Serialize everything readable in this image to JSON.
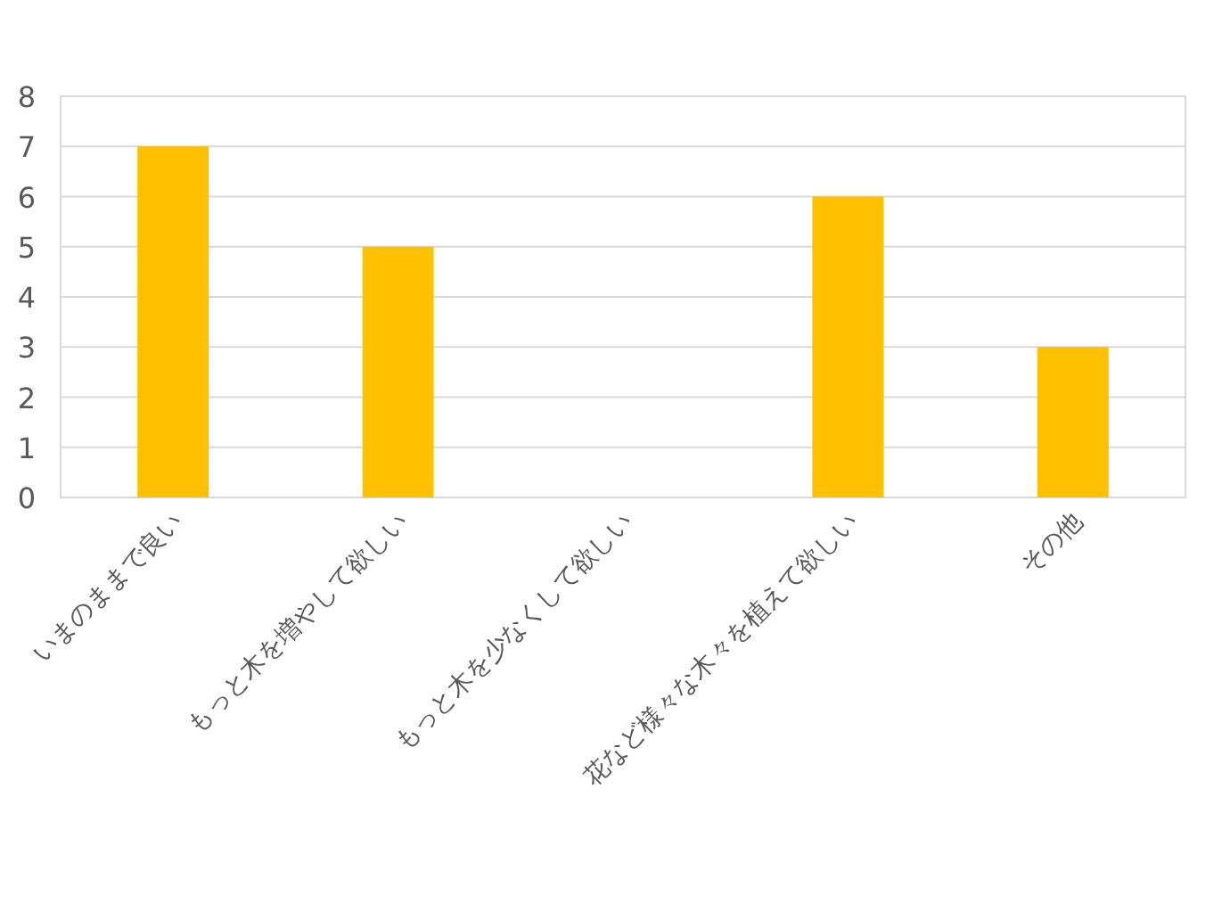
{
  "chart_data": {
    "type": "bar",
    "categories": [
      "いまのままで良い",
      "もっと木を増やして欲しい",
      "もっと木を少なくして欲しい",
      "花など様々な木々を植えて欲しい",
      "その他"
    ],
    "values": [
      7,
      5,
      0,
      6,
      3
    ],
    "color": "#ffc000",
    "ylim": [
      0,
      8
    ],
    "yticks": [
      0,
      1,
      2,
      3,
      4,
      5,
      6,
      7,
      8
    ],
    "grid": "y"
  }
}
